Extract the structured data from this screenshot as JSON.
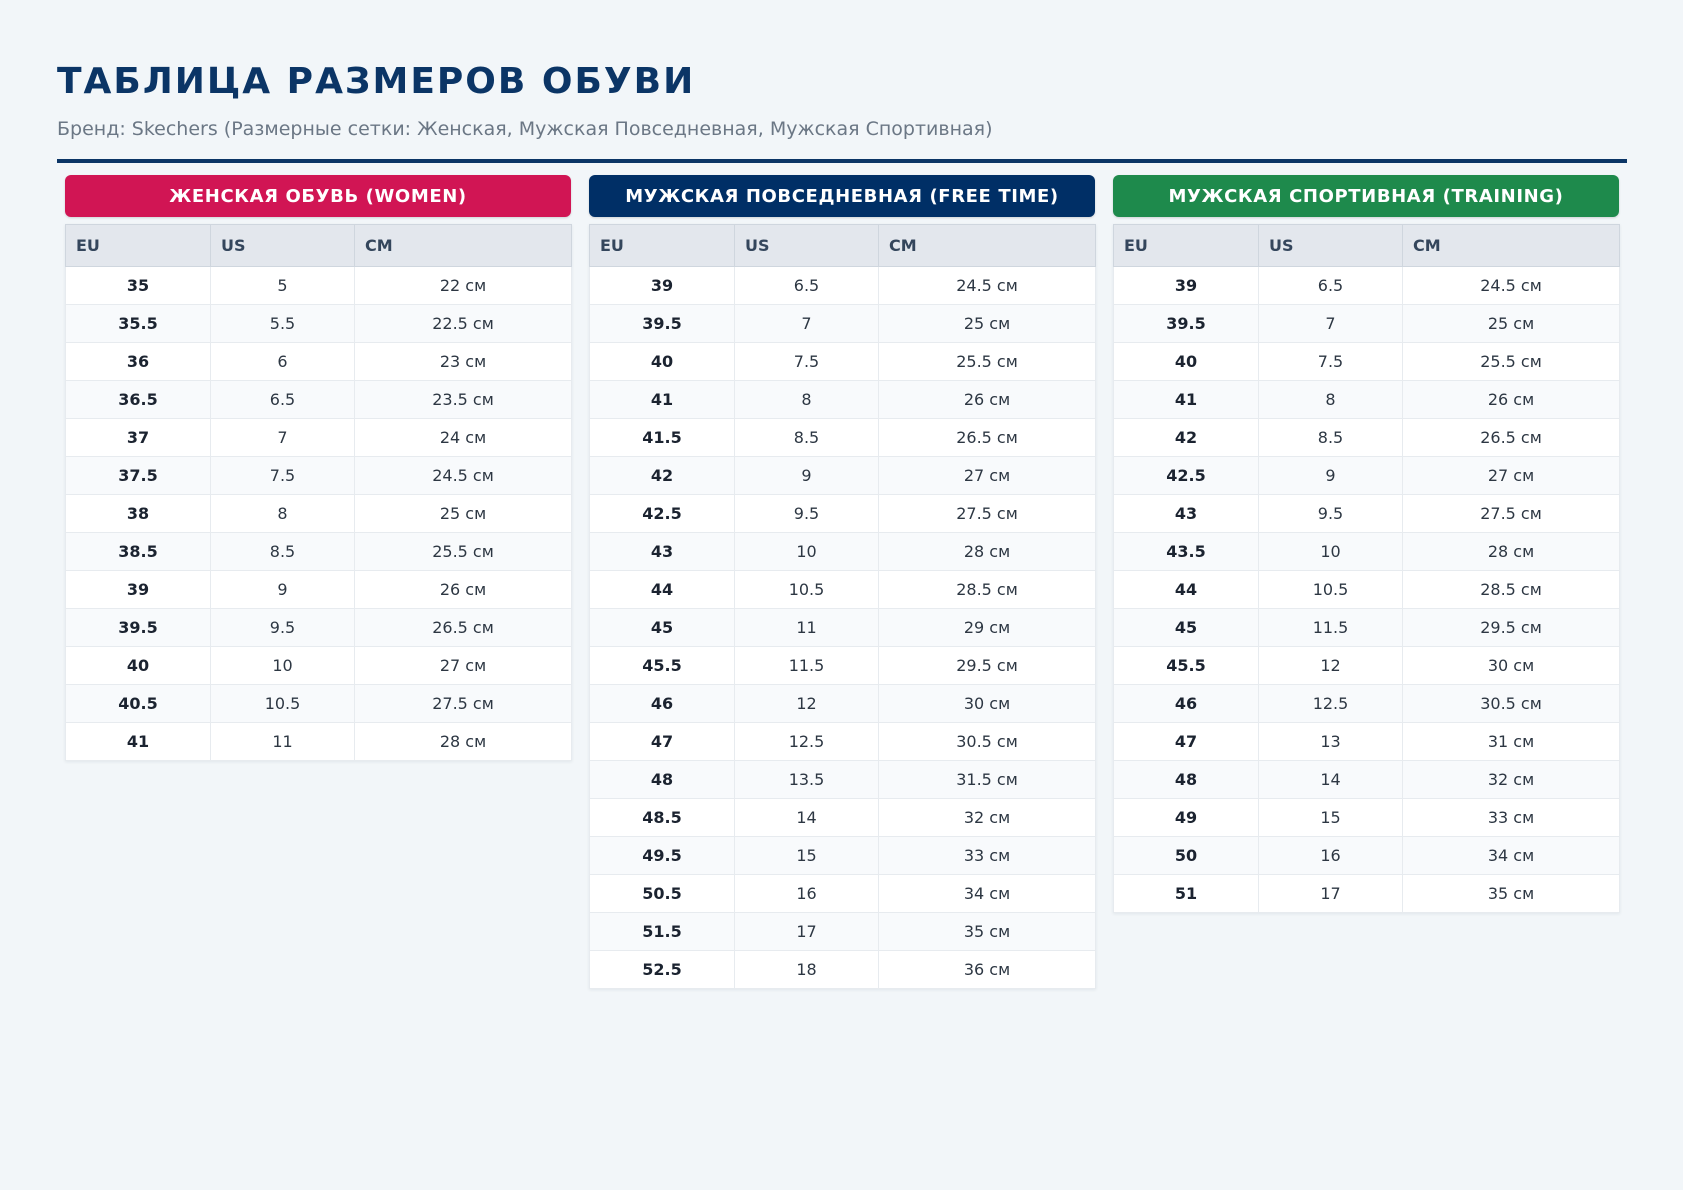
{
  "page": {
    "title": "ТАБЛИЦА РАЗМЕРОВ ОБУВИ",
    "subtitle": "Бренд: Skechers (Размерные сетки: Женская, Мужская Повседневная, Мужская Спортивная)"
  },
  "colors": {
    "title": "#0b3566",
    "women": "#d11554",
    "men_casual": "#002f66",
    "men_sport": "#1e8a4c"
  },
  "columns": [
    "EU",
    "US",
    "CM"
  ],
  "tables": [
    {
      "title": "ЖЕНСКАЯ ОБУВЬ (WOMEN)",
      "color_key": "women",
      "rows": [
        [
          "35",
          "5",
          "22 см"
        ],
        [
          "35.5",
          "5.5",
          "22.5 см"
        ],
        [
          "36",
          "6",
          "23 см"
        ],
        [
          "36.5",
          "6.5",
          "23.5 см"
        ],
        [
          "37",
          "7",
          "24 см"
        ],
        [
          "37.5",
          "7.5",
          "24.5 см"
        ],
        [
          "38",
          "8",
          "25 см"
        ],
        [
          "38.5",
          "8.5",
          "25.5 см"
        ],
        [
          "39",
          "9",
          "26 см"
        ],
        [
          "39.5",
          "9.5",
          "26.5 см"
        ],
        [
          "40",
          "10",
          "27 см"
        ],
        [
          "40.5",
          "10.5",
          "27.5 см"
        ],
        [
          "41",
          "11",
          "28 см"
        ]
      ]
    },
    {
      "title": "МУЖСКАЯ ПОВСЕДНЕВНАЯ (FREE TIME)",
      "color_key": "men_casual",
      "rows": [
        [
          "39",
          "6.5",
          "24.5 см"
        ],
        [
          "39.5",
          "7",
          "25 см"
        ],
        [
          "40",
          "7.5",
          "25.5 см"
        ],
        [
          "41",
          "8",
          "26 см"
        ],
        [
          "41.5",
          "8.5",
          "26.5 см"
        ],
        [
          "42",
          "9",
          "27 см"
        ],
        [
          "42.5",
          "9.5",
          "27.5 см"
        ],
        [
          "43",
          "10",
          "28 см"
        ],
        [
          "44",
          "10.5",
          "28.5 см"
        ],
        [
          "45",
          "11",
          "29 см"
        ],
        [
          "45.5",
          "11.5",
          "29.5 см"
        ],
        [
          "46",
          "12",
          "30 см"
        ],
        [
          "47",
          "12.5",
          "30.5 см"
        ],
        [
          "48",
          "13.5",
          "31.5 см"
        ],
        [
          "48.5",
          "14",
          "32 см"
        ],
        [
          "49.5",
          "15",
          "33 см"
        ],
        [
          "50.5",
          "16",
          "34 см"
        ],
        [
          "51.5",
          "17",
          "35 см"
        ],
        [
          "52.5",
          "18",
          "36 см"
        ]
      ]
    },
    {
      "title": "МУЖСКАЯ СПОРТИВНАЯ (TRAINING)",
      "color_key": "men_sport",
      "rows": [
        [
          "39",
          "6.5",
          "24.5 см"
        ],
        [
          "39.5",
          "7",
          "25 см"
        ],
        [
          "40",
          "7.5",
          "25.5 см"
        ],
        [
          "41",
          "8",
          "26 см"
        ],
        [
          "42",
          "8.5",
          "26.5 см"
        ],
        [
          "42.5",
          "9",
          "27 см"
        ],
        [
          "43",
          "9.5",
          "27.5 см"
        ],
        [
          "43.5",
          "10",
          "28 см"
        ],
        [
          "44",
          "10.5",
          "28.5 см"
        ],
        [
          "45",
          "11.5",
          "29.5 см"
        ],
        [
          "45.5",
          "12",
          "30 см"
        ],
        [
          "46",
          "12.5",
          "30.5 см"
        ],
        [
          "47",
          "13",
          "31 см"
        ],
        [
          "48",
          "14",
          "32 см"
        ],
        [
          "49",
          "15",
          "33 см"
        ],
        [
          "50",
          "16",
          "34 см"
        ],
        [
          "51",
          "17",
          "35 см"
        ]
      ]
    }
  ]
}
